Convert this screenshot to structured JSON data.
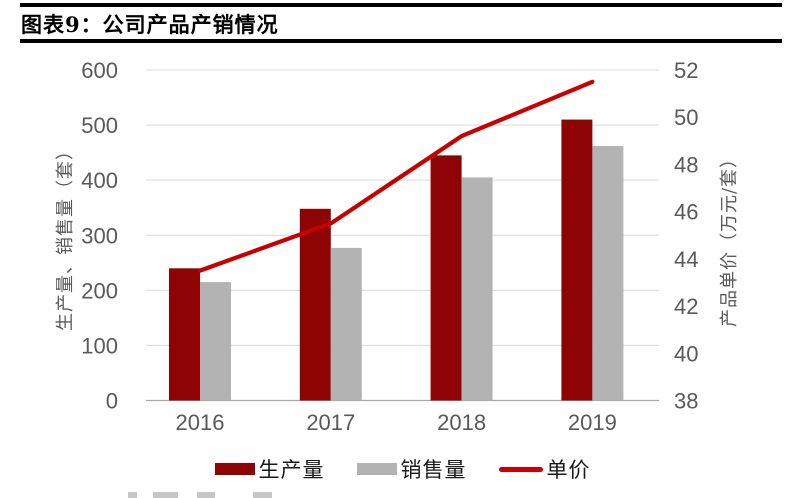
{
  "header": {
    "title": "图表9：公司产品产销情况"
  },
  "chart_data": {
    "type": "bar",
    "subtype": "grouped-bars-with-line-secondary-axis",
    "title": "图表9：公司产品产销情况",
    "categories": [
      "2016",
      "2017",
      "2018",
      "2019"
    ],
    "series": [
      {
        "name": "生产量",
        "type": "bar",
        "axis": "left",
        "color": "#8E0404",
        "values": [
          240,
          348,
          445,
          510
        ]
      },
      {
        "name": "销售量",
        "type": "bar",
        "axis": "left",
        "color": "#B3B3B3",
        "values": [
          215,
          277,
          405,
          462
        ]
      },
      {
        "name": "单价",
        "type": "line",
        "axis": "right",
        "color": "#C80000",
        "values": [
          43.5,
          45.5,
          49.2,
          51.5
        ]
      }
    ],
    "left_axis": {
      "title": "生产量、销售量（套）",
      "min": 0,
      "max": 600,
      "step": 100,
      "ticks": [
        600,
        500,
        400,
        300,
        200,
        100,
        0
      ]
    },
    "right_axis": {
      "title": "产品单价（万元/套）",
      "min": 38,
      "max": 52,
      "step": 2,
      "ticks": [
        52,
        50,
        48,
        46,
        44,
        42,
        40,
        38
      ]
    },
    "grid": true,
    "legend_position": "bottom"
  },
  "colors": {
    "grid": "#D9D9D9",
    "axis_line": "#A6A6A6",
    "tick_label": "#595959",
    "header_rule": "#000000"
  }
}
